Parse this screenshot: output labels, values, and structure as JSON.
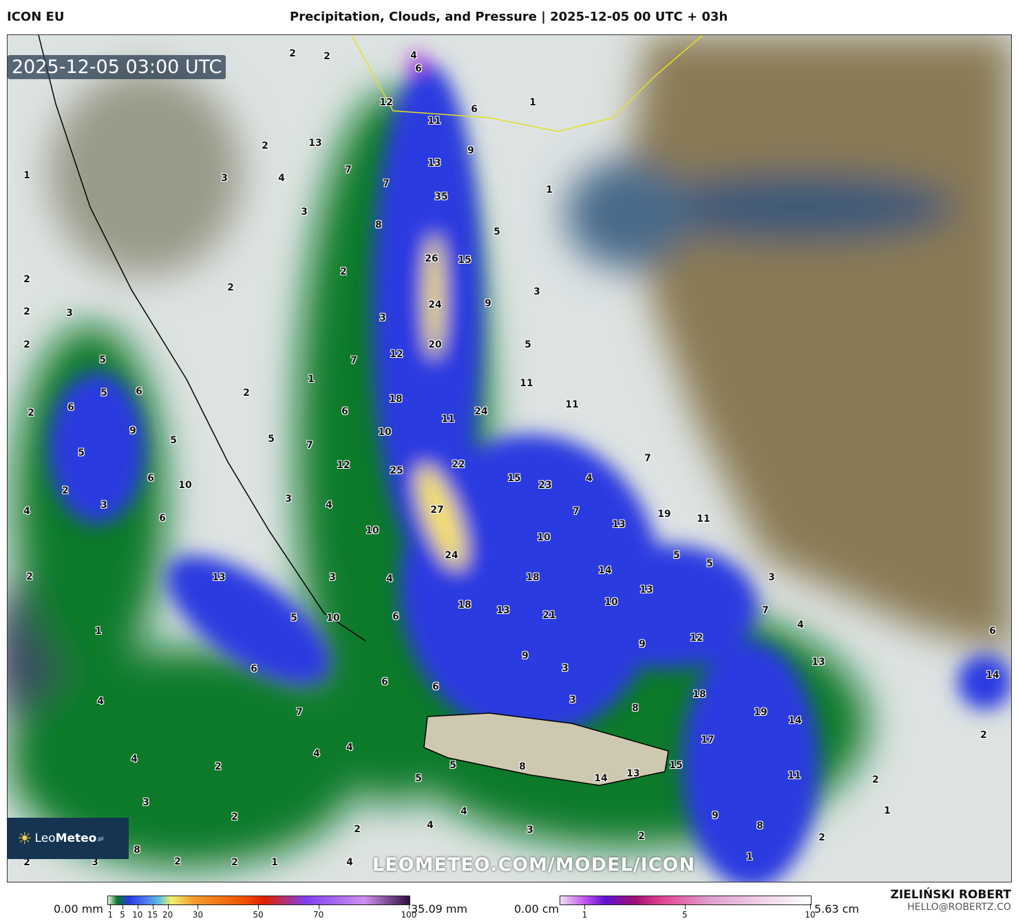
{
  "header": {
    "model": "ICON EU",
    "title": "Precipitation, Clouds, and Pressure | 2025-12-05 00 UTC + 03h"
  },
  "map": {
    "timestamp": "2025-12-05 03:00 UTC",
    "watermark": "LEOMETEO.COM/MODEL/ICON",
    "logo": {
      "text_a": "Leo",
      "text_b": "Meteo",
      "suffix": ".pl"
    },
    "precip_labels": [
      4,
      6,
      12,
      6,
      11,
      1,
      13,
      9,
      13,
      7,
      2,
      2,
      2,
      1,
      3,
      4,
      7,
      35,
      1,
      3,
      8,
      5,
      26,
      15,
      2,
      2,
      2,
      3,
      24,
      9,
      2,
      3,
      3,
      2,
      20,
      5,
      5,
      7,
      12,
      1,
      11,
      5,
      6,
      2,
      18,
      11,
      2,
      6,
      6,
      24,
      11,
      9,
      5,
      5,
      10,
      7,
      5,
      7,
      12,
      22,
      25,
      6,
      10,
      15,
      4,
      2,
      23,
      3,
      3,
      4,
      4,
      27,
      7,
      19,
      11,
      13,
      6,
      10,
      10,
      24,
      5,
      5,
      2,
      13,
      3,
      4,
      14,
      18,
      3,
      13,
      18,
      10,
      13,
      21,
      5,
      10,
      6,
      7,
      1,
      4,
      9,
      12,
      6,
      9,
      13,
      6,
      3,
      6,
      6,
      14,
      4,
      3,
      18,
      8,
      7,
      19,
      14,
      2,
      17,
      4,
      4,
      4,
      2,
      5,
      8,
      15,
      13,
      14,
      5,
      11,
      2,
      3,
      4,
      1,
      2,
      9,
      4,
      8,
      2,
      3,
      2,
      2,
      8,
      1,
      2,
      3,
      2,
      2,
      1,
      4
    ]
  },
  "legend_precip": {
    "min": "0.00 mm",
    "max": "35.09 mm",
    "ticks": [
      "1",
      "5",
      "10",
      "15",
      "20",
      "30",
      "50",
      "70",
      "100"
    ]
  },
  "legend_snow": {
    "min": "0.00 cm",
    "max": "5.63 cm",
    "ticks": [
      "1",
      "5",
      "10"
    ]
  },
  "author": {
    "name": "ZIELIŃSKI ROBERT",
    "email": "HELLO@ROBERTZ.CO"
  },
  "colors": {
    "land": "#8a7a55",
    "sea": "#3a5878",
    "rain_green": "#0a7a2a",
    "rain_blue": "#2a3ae0",
    "rain_yellow": "#f5e070"
  }
}
